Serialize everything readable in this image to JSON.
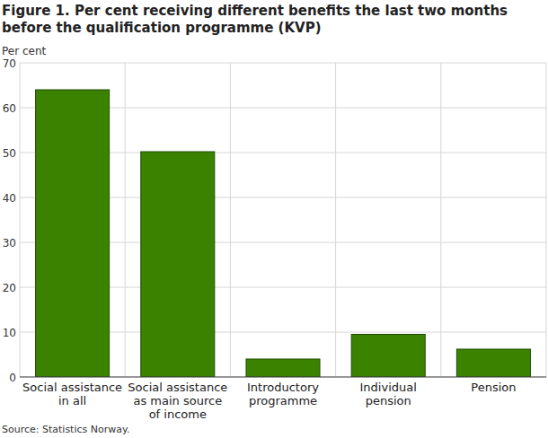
{
  "chart_data": {
    "type": "bar",
    "title": "Figure 1. Per cent receiving different benefits the last two months before the qualification programme (KVP)",
    "y_label": "Per cent",
    "source": "Source: Statistics Norway.",
    "categories": [
      "Social assistance in all",
      "Social assistance as main source of income",
      "Introductory programme",
      "Individual pension",
      "Pension"
    ],
    "values": [
      64,
      50.2,
      4,
      9.5,
      6.2
    ],
    "color": "#3a8200",
    "ylim": [
      0,
      70
    ],
    "yticks": [
      0,
      10,
      20,
      30,
      40,
      50,
      60,
      70
    ],
    "grid": true
  }
}
